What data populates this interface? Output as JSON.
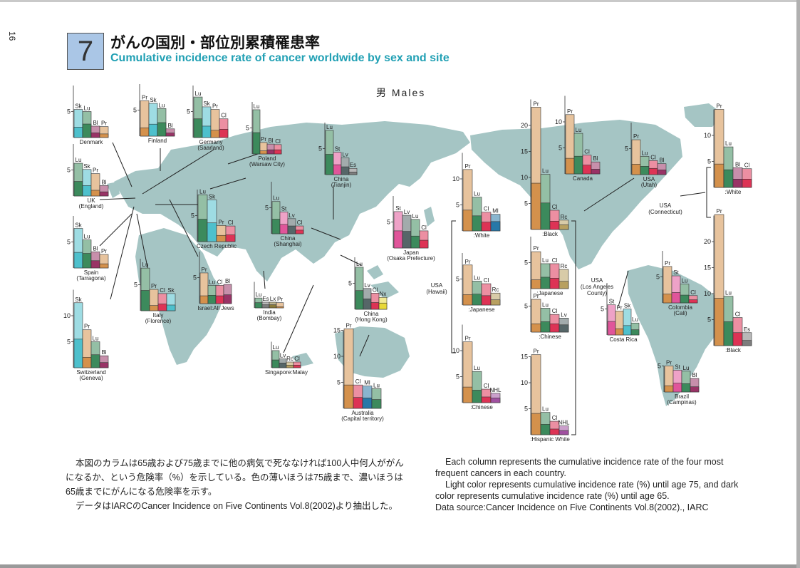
{
  "page": {
    "number": "16"
  },
  "header": {
    "number": "7",
    "title_jp": "がんの国別・部位別累積罹患率",
    "title_en": "Cumulative incidence rate of cancer worldwide by sex and site"
  },
  "sex_label": "男 Males",
  "colors": {
    "map": "#a5c5c4",
    "Pr": "#d4914c",
    "Lu": "#3c8a5c",
    "Sk": "#4ec0cc",
    "Bl": "#993366",
    "Cl": "#dd3355",
    "Lv": "#566668",
    "St": "#e0559a",
    "Es": "#7d7d7d",
    "Lx": "#8a7a3a",
    "Rc": "#b8a060",
    "Mi": "#2878a8",
    "Nx": "#e8d838",
    "NHL": "#a050a0"
  },
  "chart_data": [
    {
      "type": "bar",
      "name": "Denmark",
      "sub": "",
      "categories": [
        "Sk",
        "Lu",
        "Bl",
        "Pr"
      ],
      "values_75": [
        5.4,
        5.0,
        2.2,
        2.1
      ],
      "values_65": [
        2.0,
        2.6,
        0.9,
        0.7
      ],
      "ylim": [
        0,
        10
      ],
      "ticks": [
        5
      ]
    },
    {
      "type": "bar",
      "name": "Finland",
      "sub": "",
      "categories": [
        "Pr",
        "Sk",
        "Lu",
        "Bl"
      ],
      "values_75": [
        6.8,
        6.3,
        5.3,
        1.4
      ],
      "values_65": [
        1.6,
        2.3,
        2.6,
        0.6
      ],
      "ylim": [
        0,
        10
      ],
      "ticks": [
        5
      ]
    },
    {
      "type": "bar",
      "name": "Germany",
      "sub": "(Saarland)",
      "categories": [
        "Lu",
        "Sk",
        "Pr",
        "Cl"
      ],
      "values_75": [
        7.8,
        5.9,
        5.4,
        3.6
      ],
      "values_65": [
        3.6,
        2.2,
        1.4,
        1.6
      ],
      "ylim": [
        0,
        10
      ],
      "ticks": [
        5
      ]
    },
    {
      "type": "bar",
      "name": "Poland",
      "sub": "(Warsaw City)",
      "categories": [
        "Lu",
        "Pr",
        "Bl",
        "Cl"
      ],
      "values_75": [
        8.5,
        2.2,
        1.9,
        1.8
      ],
      "values_65": [
        4.1,
        0.6,
        0.8,
        0.8
      ],
      "ylim": [
        0,
        10
      ],
      "ticks": [
        5
      ]
    },
    {
      "type": "bar",
      "name": "UK",
      "sub": "(England)",
      "categories": [
        "Lu",
        "Sk",
        "Pr",
        "Bl"
      ],
      "values_75": [
        6.3,
        5.1,
        4.3,
        2.0
      ],
      "values_65": [
        2.8,
        2.0,
        1.1,
        0.8
      ],
      "ylim": [
        0,
        10
      ],
      "ticks": [
        5
      ]
    },
    {
      "type": "bar",
      "name": "Czech Republic",
      "sub": "",
      "categories": [
        "Lu",
        "Sk",
        "Pr",
        "Cl"
      ],
      "values_75": [
        9.0,
        8.0,
        3.1,
        3.0
      ],
      "values_65": [
        4.3,
        3.6,
        1.2,
        1.3
      ],
      "ylim": [
        0,
        10
      ],
      "ticks": [
        5
      ]
    },
    {
      "type": "bar",
      "name": "Spain",
      "sub": "(Tarragona)",
      "categories": [
        "Sk",
        "Lu",
        "Bl",
        "Pr"
      ],
      "values_75": [
        7.6,
        5.4,
        3.1,
        2.6
      ],
      "values_65": [
        3.0,
        2.8,
        1.4,
        0.8
      ],
      "ylim": [
        0,
        10
      ],
      "ticks": [
        5
      ]
    },
    {
      "type": "bar",
      "name": "Italy",
      "sub": "(Florence)",
      "categories": [
        "Lu",
        "Pr",
        "Cl",
        "Sk"
      ],
      "values_75": [
        8.2,
        4.1,
        3.3,
        3.3
      ],
      "values_65": [
        3.9,
        1.0,
        1.3,
        1.1
      ],
      "ylim": [
        0,
        10
      ],
      "ticks": [
        5
      ]
    },
    {
      "type": "bar",
      "name": "Israel:All Jews",
      "sub": "",
      "categories": [
        "Pr",
        "Lu",
        "Cl",
        "Bl"
      ],
      "values_75": [
        5.9,
        3.5,
        3.5,
        3.7
      ],
      "values_65": [
        1.5,
        1.6,
        1.5,
        1.7
      ],
      "ylim": [
        0,
        10
      ],
      "ticks": [
        5
      ]
    },
    {
      "type": "bar",
      "name": "Switzerland",
      "sub": "(Geneva)",
      "categories": [
        "Sk",
        "Pr",
        "Lu",
        "Bl"
      ],
      "values_75": [
        12.5,
        7.3,
        5.0,
        2.3
      ],
      "values_65": [
        5.5,
        2.0,
        2.5,
        1.0
      ],
      "ylim": [
        0,
        15
      ],
      "ticks": [
        5,
        10
      ]
    },
    {
      "type": "bar",
      "name": "China",
      "sub": "(Tianjin)",
      "categories": [
        "Lu",
        "St",
        "Lv",
        "Es"
      ],
      "values_75": [
        8.5,
        4.3,
        3.2,
        1.2
      ],
      "values_65": [
        3.9,
        1.9,
        1.5,
        0.5
      ],
      "ylim": [
        0,
        10
      ],
      "ticks": [
        5
      ]
    },
    {
      "type": "bar",
      "name": "China",
      "sub": "(Shanghai)",
      "categories": [
        "Lu",
        "St",
        "Lv",
        "Cl"
      ],
      "values_75": [
        6.2,
        4.2,
        2.9,
        1.5
      ],
      "values_65": [
        2.8,
        1.8,
        1.5,
        0.7
      ],
      "ylim": [
        0,
        10
      ],
      "ticks": [
        5
      ]
    },
    {
      "type": "bar",
      "name": "India",
      "sub": "(Bombay)",
      "categories": [
        "Lu",
        "Es",
        "Lx",
        "Pr"
      ],
      "values_75": [
        1.9,
        1.1,
        1.1,
        1.0
      ],
      "values_65": [
        1.0,
        0.6,
        0.6,
        0.2
      ],
      "ylim": [
        0,
        10
      ],
      "ticks": [
        5
      ]
    },
    {
      "type": "bar",
      "name": "China",
      "sub": "(Hong Kong)",
      "categories": [
        "Lu",
        "Lv",
        "Cl",
        "Nx"
      ],
      "values_75": [
        8.1,
        4.0,
        3.1,
        2.3
      ],
      "values_65": [
        3.6,
        2.0,
        1.3,
        1.2
      ],
      "ylim": [
        0,
        10
      ],
      "ticks": [
        5
      ]
    },
    {
      "type": "bar",
      "name": "Japan",
      "sub": "(Osaka Prefecture)",
      "categories": [
        "St",
        "Lv",
        "Lu",
        "Cl"
      ],
      "values_75": [
        7.0,
        6.3,
        5.5,
        3.3
      ],
      "values_65": [
        3.3,
        3.2,
        2.3,
        1.5
      ],
      "ylim": [
        0,
        10
      ],
      "ticks": [
        5
      ]
    },
    {
      "type": "bar",
      "name": "Singapore:Malay",
      "sub": "",
      "categories": [
        "Lu",
        "Lv",
        "Rc",
        "Cl"
      ],
      "values_75": [
        3.3,
        1.7,
        1.1,
        1.1
      ],
      "values_65": [
        1.5,
        0.9,
        0.5,
        0.5
      ],
      "ylim": [
        0,
        10
      ],
      "ticks": [
        5
      ]
    },
    {
      "type": "bar",
      "name": "Australia",
      "sub": "(Capital territory)",
      "categories": [
        "Pr",
        "Cl",
        "Ml",
        "Lu"
      ],
      "values_75": [
        15.3,
        4.5,
        4.3,
        3.8
      ],
      "values_65": [
        4.5,
        2.1,
        2.0,
        1.7
      ],
      "ylim": [
        0,
        15
      ],
      "ticks": [
        5,
        10,
        15
      ]
    },
    {
      "type": "bar",
      "name": "USA",
      "sub": "(Hawaii):White",
      "categories": [
        "Pr",
        "Lu",
        "Cl",
        "Ml"
      ],
      "values_75": [
        11.8,
        6.5,
        3.6,
        3.2
      ],
      "values_65": [
        4.0,
        2.9,
        1.7,
        1.8
      ],
      "ylim": [
        0,
        15
      ],
      "ticks": [
        5,
        10
      ]
    },
    {
      "type": "bar",
      "name": "USA",
      "sub": "(Hawaii):Japanese",
      "categories": [
        "Pr",
        "Lu",
        "Cl",
        "Rc"
      ],
      "values_75": [
        7.7,
        4.6,
        4.1,
        2.3
      ],
      "values_65": [
        2.0,
        2.1,
        1.8,
        1.0
      ],
      "ylim": [
        0,
        10
      ],
      "ticks": [
        5
      ]
    },
    {
      "type": "bar",
      "name": "USA",
      "sub": "(Hawaii):Chinese",
      "categories": [
        "Pr",
        "Lu",
        "Cl",
        "NHL"
      ],
      "values_75": [
        11.7,
        6.0,
        2.6,
        1.8
      ],
      "values_65": [
        3.0,
        2.4,
        1.1,
        0.9
      ],
      "ylim": [
        0,
        15
      ],
      "ticks": [
        5,
        10
      ]
    },
    {
      "type": "bar",
      "name": "USA",
      "sub": "(Los Angeles County):Black",
      "categories": [
        "Pr",
        "Lu",
        "Cl",
        "Rc"
      ],
      "values_75": [
        23.5,
        10.6,
        3.7,
        1.8
      ],
      "values_65": [
        8.9,
        5.1,
        1.6,
        0.9
      ],
      "ylim": [
        0,
        25
      ],
      "ticks": [
        5,
        10,
        15,
        20
      ]
    },
    {
      "type": "bar",
      "name": "USA",
      "sub": "(Los Angeles County):Japanese",
      "categories": [
        "Pr",
        "Lu",
        "Cl",
        "Rc"
      ],
      "values_75": [
        7.1,
        4.8,
        4.8,
        3.7
      ],
      "values_65": [
        1.7,
        2.2,
        2.0,
        1.4
      ],
      "ylim": [
        0,
        10
      ],
      "ticks": [
        5
      ]
    },
    {
      "type": "bar",
      "name": "USA",
      "sub": "(Los Angeles County):Chinese",
      "categories": [
        "Pr",
        "Lu",
        "Cl",
        "Lv"
      ],
      "values_75": [
        6.3,
        4.6,
        3.4,
        2.7
      ],
      "values_65": [
        1.6,
        2.0,
        1.6,
        1.4
      ],
      "ylim": [
        0,
        10
      ],
      "ticks": [
        5
      ]
    },
    {
      "type": "bar",
      "name": "USA",
      "sub": "(Los Angeles County):Hispanic White",
      "categories": [
        "Pr",
        "Lu",
        "Cl",
        "NHL"
      ],
      "values_75": [
        15.4,
        4.3,
        2.6,
        1.7
      ],
      "values_65": [
        4.1,
        2.0,
        1.1,
        0.8
      ],
      "ylim": [
        0,
        15
      ],
      "ticks": [
        5,
        10,
        15
      ]
    },
    {
      "type": "bar",
      "name": "Canada",
      "sub": "",
      "categories": [
        "Pr",
        "Lu",
        "Cl",
        "Bl"
      ],
      "values_75": [
        11.4,
        7.8,
        3.6,
        2.3
      ],
      "values_65": [
        3.0,
        3.4,
        1.7,
        0.9
      ],
      "ylim": [
        0,
        15
      ],
      "ticks": [
        5,
        10
      ]
    },
    {
      "type": "bar",
      "name": "USA",
      "sub": "(Utah)",
      "categories": [
        "Pr",
        "Lu",
        "Cl",
        "Bl"
      ],
      "values_75": [
        6.7,
        3.5,
        2.7,
        2.1
      ],
      "values_65": [
        2.0,
        1.6,
        1.2,
        0.9
      ],
      "ylim": [
        0,
        10
      ],
      "ticks": [
        5
      ]
    },
    {
      "type": "bar",
      "name": "USA",
      "sub": "(Connecticut):White",
      "categories": [
        "Pr",
        "Lu",
        "Bl",
        "Cl"
      ],
      "values_75": [
        15.0,
        7.8,
        3.8,
        3.6
      ],
      "values_65": [
        4.5,
        3.4,
        1.6,
        1.6
      ],
      "ylim": [
        0,
        15
      ],
      "ticks": [
        5,
        10
      ]
    },
    {
      "type": "bar",
      "name": "USA",
      "sub": "(Connecticut):Black",
      "categories": [
        "Pr",
        "Lu",
        "Cl",
        "Es"
      ],
      "values_75": [
        25.2,
        9.5,
        5.4,
        2.5
      ],
      "values_65": [
        9.1,
        4.6,
        2.5,
        1.0
      ],
      "ylim": [
        0,
        25
      ],
      "ticks": [
        5,
        10,
        15,
        20
      ]
    },
    {
      "type": "bar",
      "name": "Colombia",
      "sub": "(Cali)",
      "categories": [
        "Pr",
        "St",
        "Lu",
        "Cl"
      ],
      "values_75": [
        7.0,
        5.2,
        3.6,
        1.4
      ],
      "values_65": [
        1.7,
        2.0,
        1.5,
        0.6
      ],
      "ylim": [
        0,
        10
      ],
      "ticks": [
        5
      ]
    },
    {
      "type": "bar",
      "name": "Costa Rica",
      "sub": "",
      "categories": [
        "St",
        "Pr",
        "Sk",
        "Lu"
      ],
      "values_75": [
        5.8,
        4.6,
        5.0,
        2.3
      ],
      "values_65": [
        2.6,
        1.2,
        1.8,
        1.0
      ],
      "ylim": [
        0,
        10
      ],
      "ticks": [
        5
      ]
    },
    {
      "type": "bar",
      "name": "Brazil",
      "sub": "(Campinas)",
      "categories": [
        "Pr",
        "St",
        "Lu",
        "Bl"
      ],
      "values_75": [
        5.0,
        4.2,
        4.0,
        2.6
      ],
      "values_65": [
        1.2,
        1.7,
        1.6,
        1.0
      ],
      "ylim": [
        0,
        10
      ],
      "ticks": [
        5
      ]
    }
  ],
  "side_labels": {
    "hawaii": "USA\n(Hawaii)",
    "la": "USA\n(Los Angeles\nCounty)",
    "connecticut": "USA\n(Connecticut)"
  },
  "notes": {
    "jp": [
      "本図のカラムは65歳および75歳までに他の病気で死ななければ100人中何人ががんになるか、という危険率（%）を示している。色の薄いほうは75歳まで、濃いほうは65歳までにがんになる危険率を示す。",
      "データはIARCのCancer Incidence on Five Continents Vol.8(2002)より抽出した。"
    ],
    "en": [
      "Each column represents the cumulative incidence rate of the four most frequent cancers in each country.",
      "Light color represents cumulative incidence rate (%) until age 75, and dark color represents cumulative incidence rate (%) until age 65.",
      "Data source:Cancer Incidence on Five Continents Vol.8(2002)., IARC"
    ]
  }
}
